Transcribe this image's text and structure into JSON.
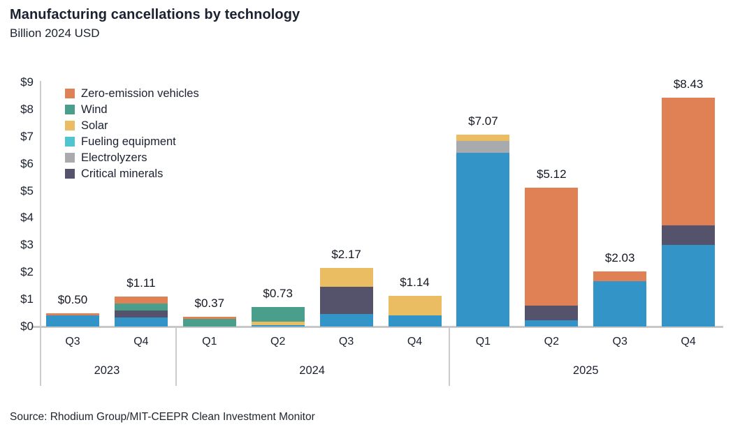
{
  "title": "Manufacturing cancellations by technology",
  "subtitle": "Billion 2024 USD",
  "source": "Source: Rhodium Group/MIT-CEEPR Clean Investment Monitor",
  "colors": {
    "zero_emission_vehicles": "#E08155",
    "wind": "#4A9F8C",
    "solar": "#EABD62",
    "fueling_equipment": "#4EC5D0",
    "electrolyzers": "#A8AAAD",
    "critical_minerals": "#55536B",
    "blue": "#3294C7",
    "axis_line": "#CCCCCC",
    "text": "#1B2130"
  },
  "legend": [
    {
      "key": "zero_emission_vehicles",
      "label": "Zero-emission vehicles"
    },
    {
      "key": "wind",
      "label": "Wind"
    },
    {
      "key": "solar",
      "label": "Solar"
    },
    {
      "key": "fueling_equipment",
      "label": "Fueling equipment"
    },
    {
      "key": "electrolyzers",
      "label": "Electrolyzers"
    },
    {
      "key": "critical_minerals",
      "label": "Critical minerals"
    }
  ],
  "chart_data": {
    "type": "bar",
    "stacked": true,
    "title": "Manufacturing cancellations by technology",
    "subtitle": "Billion 2024 USD",
    "unit": "billion 2024 USD",
    "ylim": [
      0,
      9
    ],
    "ytick_interval": 1,
    "ytick_prefix": "$",
    "grid": false,
    "legend_position": "top-left",
    "year_groups": [
      {
        "year": "2023",
        "bar_indices": [
          0,
          1
        ]
      },
      {
        "year": "2024",
        "bar_indices": [
          2,
          3,
          4,
          5
        ]
      },
      {
        "year": "2025",
        "bar_indices": [
          6,
          7,
          8,
          9
        ]
      }
    ],
    "bars": [
      {
        "year": "2023",
        "quarter": "Q3",
        "total": 0.5,
        "total_label": "$0.50",
        "segments": [
          {
            "key": "blue",
            "value": 0.4
          },
          {
            "key": "zero_emission_vehicles",
            "value": 0.1
          }
        ]
      },
      {
        "year": "2023",
        "quarter": "Q4",
        "total": 1.11,
        "total_label": "$1.11",
        "segments": [
          {
            "key": "blue",
            "value": 0.33
          },
          {
            "key": "critical_minerals",
            "value": 0.27
          },
          {
            "key": "wind",
            "value": 0.25
          },
          {
            "key": "zero_emission_vehicles",
            "value": 0.26
          }
        ]
      },
      {
        "year": "2024",
        "quarter": "Q1",
        "total": 0.37,
        "total_label": "$0.37",
        "segments": [
          {
            "key": "wind",
            "value": 0.27
          },
          {
            "key": "zero_emission_vehicles",
            "value": 0.1
          }
        ]
      },
      {
        "year": "2024",
        "quarter": "Q2",
        "total": 0.73,
        "total_label": "$0.73",
        "segments": [
          {
            "key": "blue",
            "value": 0.05
          },
          {
            "key": "solar",
            "value": 0.12
          },
          {
            "key": "wind",
            "value": 0.56
          }
        ]
      },
      {
        "year": "2024",
        "quarter": "Q3",
        "total": 2.17,
        "total_label": "$2.17",
        "segments": [
          {
            "key": "blue",
            "value": 0.45
          },
          {
            "key": "critical_minerals",
            "value": 1.02
          },
          {
            "key": "solar",
            "value": 0.7
          }
        ]
      },
      {
        "year": "2024",
        "quarter": "Q4",
        "total": 1.14,
        "total_label": "$1.14",
        "segments": [
          {
            "key": "blue",
            "value": 0.42
          },
          {
            "key": "solar",
            "value": 0.72
          }
        ]
      },
      {
        "year": "2025",
        "quarter": "Q1",
        "total": 7.07,
        "total_label": "$7.07",
        "segments": [
          {
            "key": "blue",
            "value": 6.4
          },
          {
            "key": "electrolyzers",
            "value": 0.43
          },
          {
            "key": "solar",
            "value": 0.24
          }
        ]
      },
      {
        "year": "2025",
        "quarter": "Q2",
        "total": 5.12,
        "total_label": "$5.12",
        "segments": [
          {
            "key": "blue",
            "value": 0.22
          },
          {
            "key": "critical_minerals",
            "value": 0.55
          },
          {
            "key": "zero_emission_vehicles",
            "value": 4.35
          }
        ]
      },
      {
        "year": "2025",
        "quarter": "Q3",
        "total": 2.03,
        "total_label": "$2.03",
        "segments": [
          {
            "key": "blue",
            "value": 1.68
          },
          {
            "key": "zero_emission_vehicles",
            "value": 0.35
          }
        ]
      },
      {
        "year": "2025",
        "quarter": "Q4",
        "total": 8.43,
        "total_label": "$8.43",
        "segments": [
          {
            "key": "blue",
            "value": 3.0
          },
          {
            "key": "critical_minerals",
            "value": 0.72
          },
          {
            "key": "zero_emission_vehicles",
            "value": 4.71
          }
        ]
      }
    ]
  }
}
